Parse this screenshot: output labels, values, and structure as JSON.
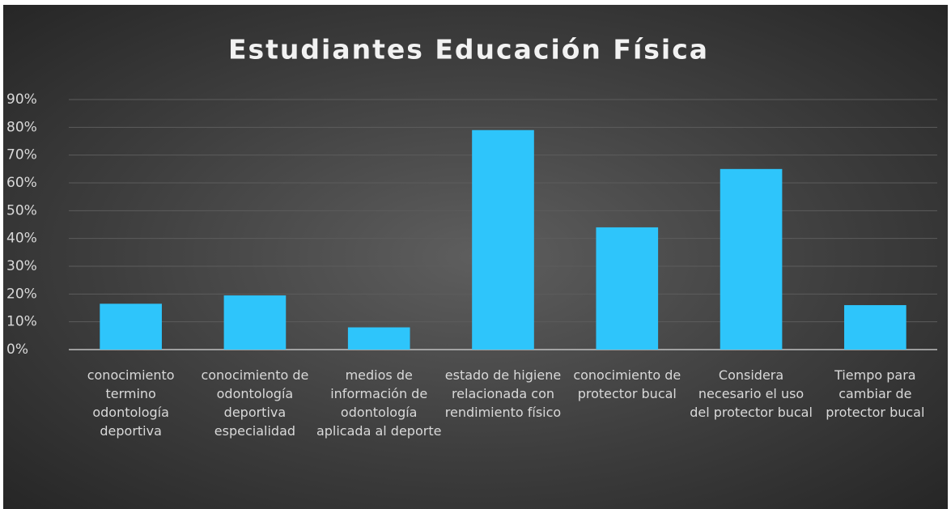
{
  "chart_data": {
    "type": "bar",
    "title": "Estudiantes Educación Física",
    "categories": [
      "conocimiento termino odontología deportiva",
      "conocimiento de odontología deportiva especialidad",
      "medios de información de odontología aplicada al deporte",
      "estado de higiene relacionada con rendimiento físico",
      "conocimiento de protector bucal",
      "Considera necesario el uso del protector bucal",
      "Tiempo para cambiar de protector bucal"
    ],
    "values": [
      16.5,
      19.5,
      8,
      79,
      44,
      65,
      16
    ],
    "color": "#2ec5fb",
    "ylim": [
      0,
      90
    ],
    "yticks": [
      {
        "value": 0,
        "label": "0%"
      },
      {
        "value": 10,
        "label": "10%"
      },
      {
        "value": 20,
        "label": "20%"
      },
      {
        "value": 30,
        "label": "30%"
      },
      {
        "value": 40,
        "label": "40%"
      },
      {
        "value": 50,
        "label": "50%"
      },
      {
        "value": 60,
        "label": "60%"
      },
      {
        "value": 70,
        "label": "70%"
      },
      {
        "value": 80,
        "label": "80%"
      },
      {
        "value": 90,
        "label": "90%"
      }
    ],
    "grid": true
  }
}
